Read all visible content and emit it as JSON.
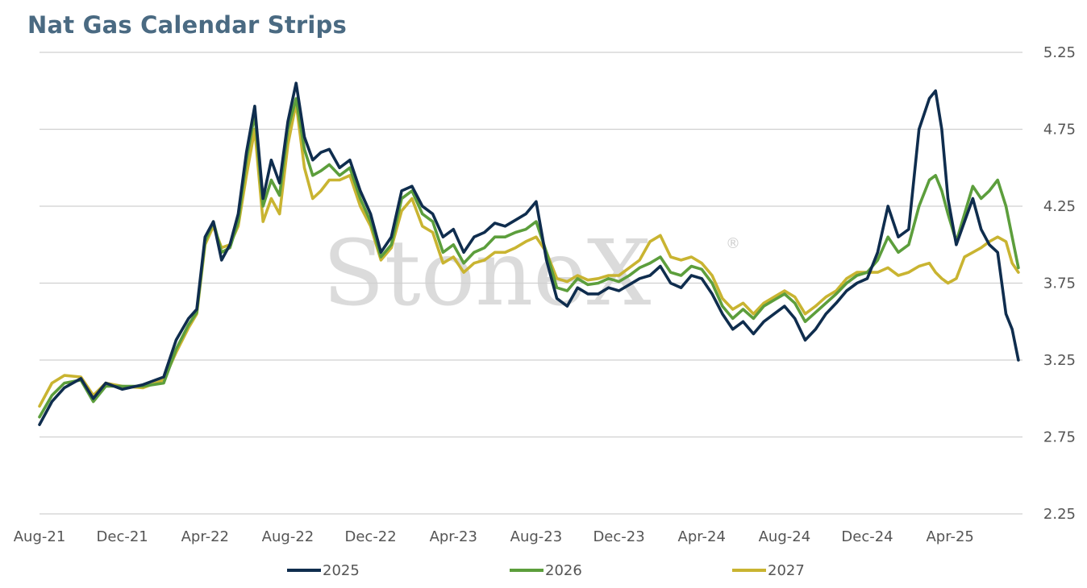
{
  "title": "Nat Gas Calendar Strips",
  "watermark": "StoneX",
  "watermark_mark": "®",
  "chart_data": {
    "type": "line",
    "title": "Nat Gas Calendar Strips",
    "xlabel": "",
    "ylabel": "",
    "ylim": [
      2.25,
      5.25
    ],
    "yticks": [
      "5.25",
      "4.75",
      "4.25",
      "3.75",
      "3.25",
      "2.75",
      "2.25"
    ],
    "y_axis_side": "right",
    "grid": "horizontal",
    "legend_position": "bottom",
    "x_tick_labels": [
      "Aug-21",
      "Dec-21",
      "Apr-22",
      "Aug-22",
      "Dec-22",
      "Apr-23",
      "Aug-23",
      "Dec-23",
      "Apr-24",
      "Aug-24",
      "Dec-24",
      "Apr-25"
    ],
    "x_tick_months": [
      0,
      4,
      8,
      12,
      16,
      20,
      24,
      28,
      32,
      36,
      40,
      44
    ],
    "x_range_months": [
      0,
      47.5
    ],
    "series": [
      {
        "name": "2025",
        "color": "#0f2d4e",
        "x": [
          0,
          0.6,
          1.2,
          2,
          2.6,
          3.2,
          4,
          5,
          6,
          6.6,
          7.2,
          7.6,
          8,
          8.4,
          8.8,
          9.2,
          9.6,
          10,
          10.4,
          10.8,
          11.2,
          11.6,
          12,
          12.4,
          12.8,
          13.2,
          13.6,
          14,
          14.5,
          15,
          15.5,
          16,
          16.5,
          17,
          17.5,
          18,
          18.5,
          19,
          19.5,
          20,
          20.5,
          21,
          21.5,
          22,
          22.5,
          23,
          23.5,
          24,
          24.5,
          25,
          25.5,
          26,
          26.5,
          27,
          27.5,
          28,
          28.5,
          29,
          29.5,
          30,
          30.5,
          31,
          31.5,
          32,
          32.5,
          33,
          33.5,
          34,
          34.5,
          35,
          35.5,
          36,
          36.5,
          37,
          37.5,
          38,
          38.5,
          39,
          39.5,
          40,
          40.5,
          41,
          41.5,
          42,
          42.5,
          43,
          43.3,
          43.6,
          43.9,
          44.3,
          44.7,
          45.1,
          45.5,
          45.9,
          46.3,
          46.7,
          47,
          47.3
        ],
        "values": [
          2.83,
          2.98,
          3.07,
          3.13,
          3.0,
          3.1,
          3.06,
          3.09,
          3.14,
          3.38,
          3.52,
          3.58,
          4.05,
          4.15,
          3.9,
          4.0,
          4.2,
          4.6,
          4.9,
          4.3,
          4.55,
          4.4,
          4.8,
          5.05,
          4.7,
          4.55,
          4.6,
          4.62,
          4.5,
          4.55,
          4.35,
          4.2,
          3.95,
          4.05,
          4.35,
          4.38,
          4.25,
          4.2,
          4.05,
          4.1,
          3.95,
          4.05,
          4.08,
          4.14,
          4.12,
          4.16,
          4.2,
          4.28,
          3.9,
          3.65,
          3.6,
          3.72,
          3.68,
          3.68,
          3.72,
          3.7,
          3.74,
          3.78,
          3.8,
          3.86,
          3.75,
          3.72,
          3.8,
          3.78,
          3.68,
          3.55,
          3.45,
          3.5,
          3.42,
          3.5,
          3.55,
          3.6,
          3.52,
          3.38,
          3.45,
          3.55,
          3.62,
          3.7,
          3.75,
          3.78,
          3.95,
          4.25,
          4.05,
          4.1,
          4.75,
          4.95,
          5.0,
          4.75,
          4.3,
          4.0,
          4.15,
          4.3,
          4.1,
          4.0,
          3.95,
          3.55,
          3.45,
          3.25
        ]
      },
      {
        "name": "2026",
        "color": "#5c9e3c",
        "x": [
          0,
          0.6,
          1.2,
          2,
          2.6,
          3.2,
          4,
          5,
          6,
          6.6,
          7.2,
          7.6,
          8,
          8.4,
          8.8,
          9.2,
          9.6,
          10,
          10.4,
          10.8,
          11.2,
          11.6,
          12,
          12.4,
          12.8,
          13.2,
          13.6,
          14,
          14.5,
          15,
          15.5,
          16,
          16.5,
          17,
          17.5,
          18,
          18.5,
          19,
          19.5,
          20,
          20.5,
          21,
          21.5,
          22,
          22.5,
          23,
          23.5,
          24,
          24.5,
          25,
          25.5,
          26,
          26.5,
          27,
          27.5,
          28,
          28.5,
          29,
          29.5,
          30,
          30.5,
          31,
          31.5,
          32,
          32.5,
          33,
          33.5,
          34,
          34.5,
          35,
          35.5,
          36,
          36.5,
          37,
          37.5,
          38,
          38.5,
          39,
          39.5,
          40,
          40.5,
          41,
          41.5,
          42,
          42.5,
          43,
          43.3,
          43.6,
          43.9,
          44.3,
          44.7,
          45.1,
          45.5,
          45.9,
          46.3,
          46.7,
          47,
          47.3
        ],
        "values": [
          2.88,
          3.02,
          3.1,
          3.12,
          2.98,
          3.08,
          3.08,
          3.08,
          3.1,
          3.32,
          3.48,
          3.56,
          4.02,
          4.15,
          3.95,
          3.98,
          4.15,
          4.55,
          4.85,
          4.25,
          4.42,
          4.32,
          4.75,
          4.95,
          4.62,
          4.45,
          4.48,
          4.52,
          4.45,
          4.5,
          4.3,
          4.15,
          3.92,
          4.0,
          4.3,
          4.35,
          4.2,
          4.15,
          3.95,
          4.0,
          3.88,
          3.95,
          3.98,
          4.05,
          4.05,
          4.08,
          4.1,
          4.15,
          3.95,
          3.72,
          3.7,
          3.78,
          3.74,
          3.75,
          3.78,
          3.76,
          3.8,
          3.85,
          3.88,
          3.92,
          3.82,
          3.8,
          3.86,
          3.84,
          3.75,
          3.6,
          3.52,
          3.58,
          3.52,
          3.6,
          3.64,
          3.68,
          3.62,
          3.5,
          3.56,
          3.62,
          3.68,
          3.75,
          3.8,
          3.82,
          3.9,
          4.05,
          3.95,
          4.0,
          4.25,
          4.42,
          4.45,
          4.35,
          4.2,
          4.02,
          4.2,
          4.38,
          4.3,
          4.35,
          4.42,
          4.25,
          4.05,
          3.85
        ]
      },
      {
        "name": "2027",
        "color": "#c9b431",
        "x": [
          0,
          0.6,
          1.2,
          2,
          2.6,
          3.2,
          4,
          5,
          6,
          6.6,
          7.2,
          7.6,
          8,
          8.4,
          8.8,
          9.2,
          9.6,
          10,
          10.4,
          10.8,
          11.2,
          11.6,
          12,
          12.4,
          12.8,
          13.2,
          13.6,
          14,
          14.5,
          15,
          15.5,
          16,
          16.5,
          17,
          17.5,
          18,
          18.5,
          19,
          19.5,
          20,
          20.5,
          21,
          21.5,
          22,
          22.5,
          23,
          23.5,
          24,
          24.5,
          25,
          25.5,
          26,
          26.5,
          27,
          27.5,
          28,
          28.5,
          29,
          29.5,
          30,
          30.5,
          31,
          31.5,
          32,
          32.5,
          33,
          33.5,
          34,
          34.5,
          35,
          35.5,
          36,
          36.5,
          37,
          37.5,
          38,
          38.5,
          39,
          39.5,
          40,
          40.5,
          41,
          41.5,
          42,
          42.5,
          43,
          43.3,
          43.6,
          43.9,
          44.3,
          44.7,
          45.1,
          45.5,
          45.9,
          46.3,
          46.7,
          47,
          47.3
        ],
        "values": [
          2.95,
          3.1,
          3.15,
          3.14,
          3.02,
          3.1,
          3.08,
          3.07,
          3.12,
          3.3,
          3.46,
          3.55,
          4.0,
          4.12,
          3.98,
          4.0,
          4.12,
          4.45,
          4.75,
          4.15,
          4.3,
          4.2,
          4.65,
          4.92,
          4.5,
          4.3,
          4.35,
          4.42,
          4.42,
          4.45,
          4.25,
          4.12,
          3.9,
          3.98,
          4.22,
          4.3,
          4.12,
          4.08,
          3.88,
          3.92,
          3.82,
          3.88,
          3.9,
          3.95,
          3.95,
          3.98,
          4.02,
          4.05,
          3.95,
          3.78,
          3.76,
          3.8,
          3.77,
          3.78,
          3.8,
          3.8,
          3.85,
          3.9,
          4.02,
          4.06,
          3.92,
          3.9,
          3.92,
          3.88,
          3.8,
          3.65,
          3.58,
          3.62,
          3.55,
          3.62,
          3.66,
          3.7,
          3.66,
          3.55,
          3.6,
          3.66,
          3.7,
          3.78,
          3.82,
          3.82,
          3.82,
          3.85,
          3.8,
          3.82,
          3.86,
          3.88,
          3.82,
          3.78,
          3.75,
          3.78,
          3.92,
          3.95,
          3.98,
          4.02,
          4.05,
          4.02,
          3.88,
          3.82
        ]
      }
    ]
  }
}
